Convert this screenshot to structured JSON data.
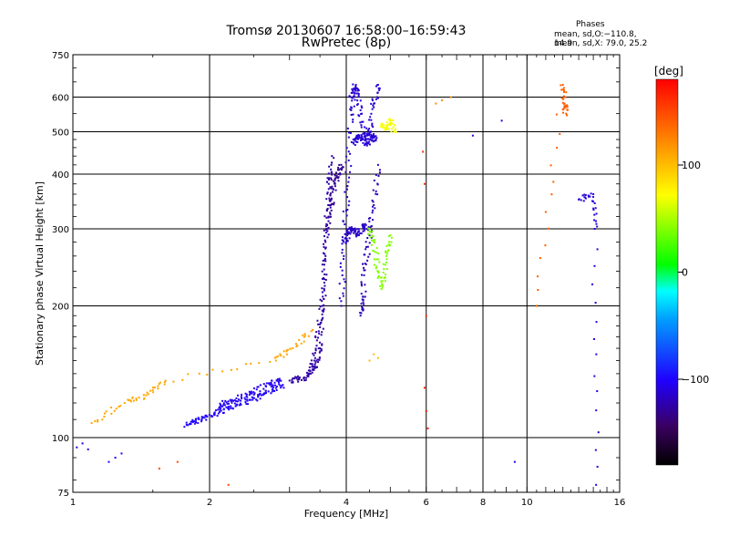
{
  "header": {
    "title_line1": "Tromsø 20130607 16:58:00–16:59:43",
    "title_line2": "RwPretec (8p)",
    "stats_heading": "Phases",
    "stats_line1": "mean, sd,O:−110.8, 14.9",
    "stats_line2": "mean, sd,X:  79.0, 25.2"
  },
  "colorbar": {
    "unit_label": "[deg]",
    "ticks": [
      {
        "value": 100,
        "label": "100"
      },
      {
        "value": 0,
        "label": "0"
      },
      {
        "value": -100,
        "label": "−100"
      }
    ],
    "range": [
      -180,
      180
    ]
  },
  "chart_data": {
    "type": "scatter",
    "title": "Tromsø 20130607 16:58:00–16:59:43  RwPretec (8p)",
    "xlabel": "Frequency [MHz]",
    "ylabel": "Stationary phase Virtual Height [km]",
    "xscale": "log",
    "yscale": "log",
    "xlim": [
      1,
      16
    ],
    "ylim": [
      75,
      750
    ],
    "x_ticks": [
      1,
      2,
      4,
      6,
      8,
      10,
      16
    ],
    "x_major_lines": [
      2,
      4,
      6,
      8,
      10
    ],
    "y_ticks": [
      75,
      100,
      200,
      300,
      400,
      500,
      600,
      750
    ],
    "y_major_lines": [
      100,
      200,
      300,
      400,
      500,
      600
    ],
    "grid": true,
    "color_by": "phase (deg)",
    "traces": [
      {
        "x": [
          1.02,
          1.05,
          1.08
        ],
        "y": [
          95,
          97,
          94
        ],
        "phase": -110
      },
      {
        "x": [
          1.2,
          1.24,
          1.28
        ],
        "y": [
          88,
          90,
          92
        ],
        "phase": -105
      },
      {
        "x": [
          1.78,
          1.85,
          1.95,
          2.05,
          2.15,
          2.3,
          2.45,
          2.6,
          2.75,
          2.9
        ],
        "y": [
          107,
          109,
          111,
          113,
          116,
          119,
          122,
          125,
          129,
          132
        ],
        "phase": -100
      },
      {
        "x": [
          2.1,
          2.2,
          2.35,
          2.5,
          2.7,
          2.85
        ],
        "y": [
          117,
          121,
          124,
          127,
          133,
          135
        ],
        "phase": -105
      },
      {
        "x": [
          3.0,
          3.15,
          3.3,
          3.42,
          3.5,
          3.55,
          3.6,
          3.65,
          3.7
        ],
        "y": [
          135,
          136,
          138,
          145,
          160,
          200,
          260,
          340,
          410
        ],
        "phase": -125
      },
      {
        "x": [
          3.3,
          3.4,
          3.48,
          3.55,
          3.6,
          3.66,
          3.72
        ],
        "y": [
          140,
          150,
          175,
          210,
          280,
          370,
          440
        ],
        "phase": -125
      },
      {
        "x": [
          3.62,
          3.7,
          3.78,
          3.85,
          3.9
        ],
        "y": [
          300,
          340,
          380,
          400,
          420
        ],
        "phase": -130
      },
      {
        "x": [
          3.9,
          3.95,
          4.0,
          4.05,
          4.1,
          4.2
        ],
        "y": [
          200,
          260,
          330,
          430,
          560,
          630
        ],
        "phase": -115
      },
      {
        "x": [
          4.1,
          4.2,
          4.3,
          4.4,
          4.5,
          4.6,
          4.7
        ],
        "y": [
          600,
          640,
          560,
          490,
          500,
          580,
          640
        ],
        "phase": -112
      },
      {
        "x": [
          4.15,
          4.25,
          4.35,
          4.45,
          4.55,
          4.65
        ],
        "y": [
          470,
          490,
          480,
          470,
          490,
          480
        ],
        "phase": -112
      },
      {
        "x": [
          4.3,
          4.35,
          4.4,
          4.5,
          4.6,
          4.7
        ],
        "y": [
          190,
          210,
          250,
          290,
          340,
          420
        ],
        "phase": -120
      },
      {
        "x": [
          3.95,
          4.05,
          4.15,
          4.25,
          4.35,
          4.45
        ],
        "y": [
          280,
          295,
          300,
          290,
          305,
          300
        ],
        "phase": -115
      },
      {
        "x": [
          4.5,
          4.6,
          4.7,
          4.8,
          4.9,
          5.0
        ],
        "y": [
          300,
          280,
          240,
          220,
          260,
          290
        ],
        "phase": 40
      },
      {
        "x": [
          4.8,
          4.9,
          5.0,
          5.1
        ],
        "y": [
          520,
          510,
          530,
          500
        ],
        "phase": 70
      },
      {
        "x": [
          4.5,
          4.6,
          4.7
        ],
        "y": [
          150,
          155,
          152
        ],
        "phase": 100
      },
      {
        "x": [
          5.9,
          5.95,
          6.0
        ],
        "y": [
          450,
          380,
          190
        ],
        "phase": 160
      },
      {
        "x": [
          5.95,
          6.0,
          6.05
        ],
        "y": [
          130,
          115,
          105
        ],
        "phase": 170
      },
      {
        "x": [
          6.3,
          6.5,
          6.8
        ],
        "y": [
          580,
          590,
          600
        ],
        "phase": 120
      },
      {
        "x": [
          7.6,
          8.8,
          9.4
        ],
        "y": [
          490,
          530,
          88
        ],
        "phase": -110
      },
      {
        "x": [
          10.5,
          12.0,
          12.1,
          12.2
        ],
        "y": [
          200,
          640,
          580,
          550
        ],
        "phase": 140
      },
      {
        "x": [
          13.0,
          14.0,
          14.1,
          14.2
        ],
        "y": [
          350,
          360,
          300,
          78
        ],
        "phase": -110
      },
      {
        "x": [
          1.1,
          1.3,
          1.45,
          1.6,
          2.8,
          3.05,
          3.35
        ],
        "y": [
          108,
          120,
          125,
          135,
          150,
          160,
          175
        ],
        "phase": 110
      },
      {
        "x": [
          1.55,
          1.7,
          2.2
        ],
        "y": [
          85,
          88,
          78
        ],
        "phase": 150
      }
    ]
  }
}
